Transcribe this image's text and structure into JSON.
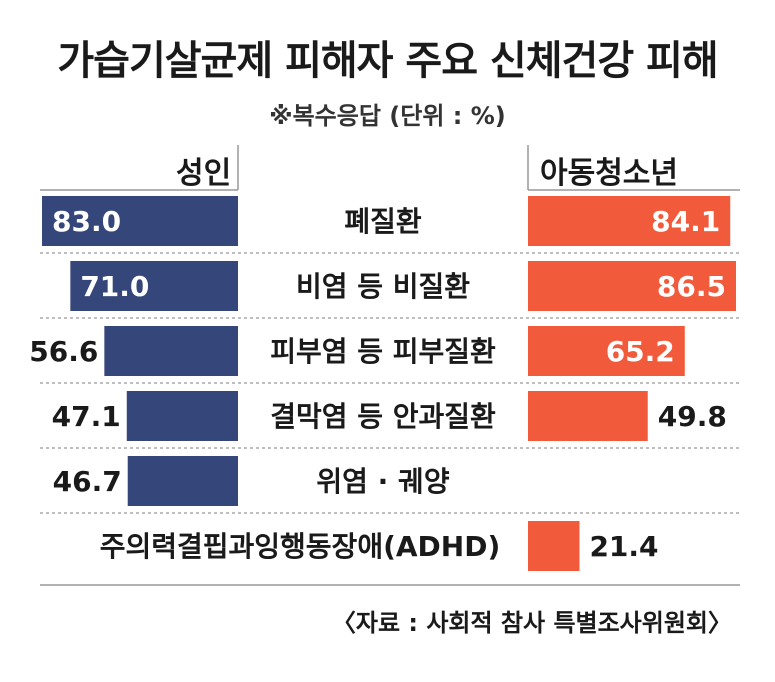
{
  "title": "가습기살균제 피해자 주요 신체건강 피해",
  "subtitle": "※복수응답 (단위 : %)",
  "source": "〈자료 : 사회적 참사 특별조사위원회〉",
  "colors": {
    "adult": "#35467a",
    "youth": "#f15a3a",
    "line": "#999999",
    "text": "#1a1a1a"
  },
  "chart_data": {
    "type": "bar",
    "unit": "%",
    "categories": [
      "폐질환",
      "비염 등 비질환",
      "피부염 등 피부질환",
      "결막염 등 안과질환",
      "위염 · 궤양",
      "주의력결핍과잉행동장애(ADHD)"
    ],
    "series": [
      {
        "name": "성인",
        "values": [
          83.0,
          71.0,
          56.6,
          47.1,
          46.7,
          null
        ],
        "labels": [
          "83.0",
          "71.0",
          "56.6",
          "47.1",
          "46.7",
          ""
        ]
      },
      {
        "name": "아동청소년",
        "values": [
          84.1,
          86.5,
          65.2,
          49.8,
          null,
          21.4
        ],
        "labels": [
          "84.1",
          "86.5",
          "65.2",
          "49.8",
          "",
          "21.4"
        ]
      }
    ]
  }
}
